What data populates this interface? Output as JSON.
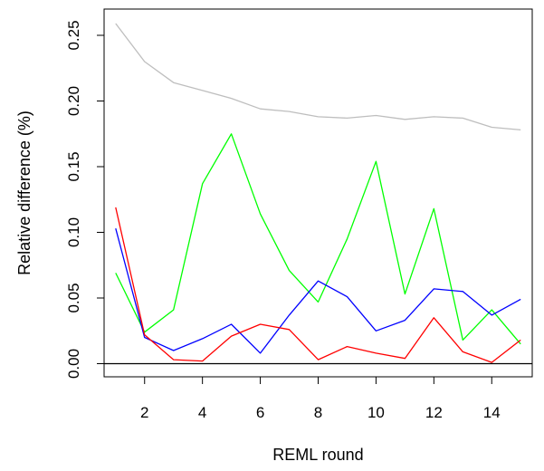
{
  "chart_data": {
    "type": "line",
    "title": "",
    "xlabel": "REML round",
    "ylabel": "Relative difference (%)",
    "xlim": [
      0.6,
      15.4
    ],
    "ylim": [
      -0.01,
      0.27
    ],
    "xticks": [
      2,
      4,
      6,
      8,
      10,
      12,
      14
    ],
    "yticks": [
      0.0,
      0.05,
      0.1,
      0.15,
      0.2,
      0.25
    ],
    "ytick_labels": [
      "0.00",
      "0.05",
      "0.10",
      "0.15",
      "0.20",
      "0.25"
    ],
    "hline": 0,
    "grid": false,
    "legend": "none",
    "x": [
      1,
      2,
      3,
      4,
      5,
      6,
      7,
      8,
      9,
      10,
      11,
      12,
      13,
      14,
      15
    ],
    "series": [
      {
        "color": "#bebebe",
        "values": [
          0.259,
          0.23,
          0.214,
          0.208,
          0.202,
          0.194,
          0.192,
          0.188,
          0.187,
          0.189,
          0.186,
          0.188,
          0.187,
          0.18,
          0.178
        ]
      },
      {
        "color": "#00ff00",
        "values": [
          0.069,
          0.024,
          0.041,
          0.137,
          0.175,
          0.114,
          0.071,
          0.047,
          0.095,
          0.154,
          0.053,
          0.118,
          0.018,
          0.041,
          0.015
        ]
      },
      {
        "color": "#0000ff",
        "values": [
          0.103,
          0.02,
          0.01,
          0.019,
          0.03,
          0.008,
          0.037,
          0.063,
          0.051,
          0.025,
          0.033,
          0.057,
          0.055,
          0.037,
          0.049
        ]
      },
      {
        "color": "#ff0000",
        "values": [
          0.119,
          0.022,
          0.003,
          0.002,
          0.021,
          0.03,
          0.026,
          0.003,
          0.013,
          0.008,
          0.004,
          0.035,
          0.009,
          0.001,
          0.018
        ]
      }
    ]
  }
}
